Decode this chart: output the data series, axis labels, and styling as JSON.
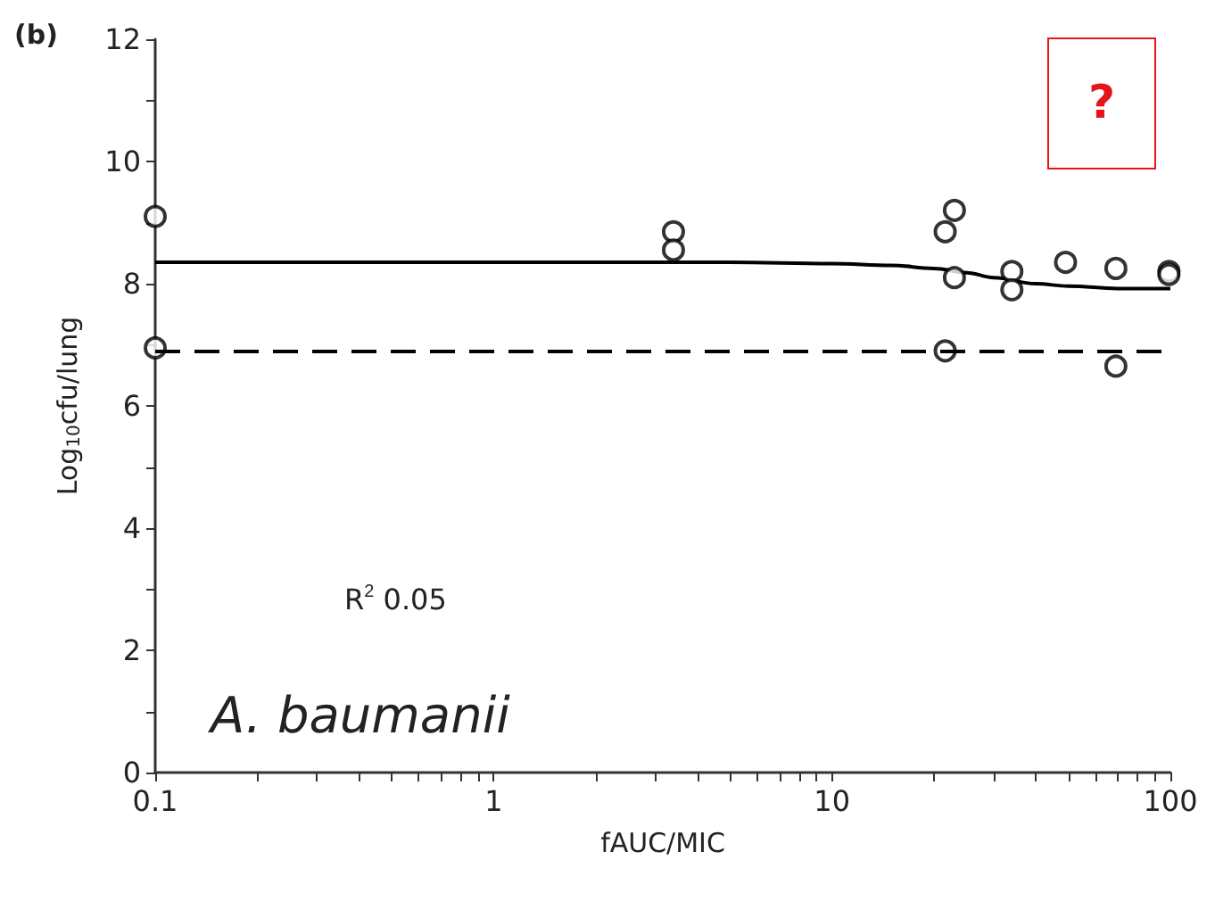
{
  "chart_data": {
    "type": "scatter",
    "xlabel": "fAUC/MIC",
    "ylabel": "Log$_{10}$cfu/lung",
    "annotations": [
      "(b)",
      "R$^{2}$ 0.05",
      "A. baumanii",
      "?"
    ],
    "log": "x",
    "grid": false,
    "xlim": [
      0.1,
      100
    ],
    "ylim": [
      0,
      12
    ],
    "xticks": [
      0.1,
      {
        "value": 0.2,
        "label": null
      },
      {
        "value": 0.3,
        "label": null
      },
      {
        "value": 0.4,
        "label": null
      },
      {
        "value": 0.5,
        "label": null
      },
      {
        "value": 0.6,
        "label": null
      },
      {
        "value": 0.7,
        "label": null
      },
      {
        "value": 0.8,
        "label": null
      },
      {
        "value": 0.9,
        "label": null
      },
      1,
      {
        "value": 2,
        "label": null
      },
      {
        "value": 3,
        "label": null
      },
      {
        "value": 4,
        "label": null
      },
      {
        "value": 5,
        "label": null
      },
      {
        "value": 6,
        "label": null
      },
      {
        "value": 7,
        "label": null
      },
      {
        "value": 8,
        "label": null
      },
      {
        "value": 9,
        "label": null
      },
      10,
      {
        "value": 20,
        "label": null
      },
      {
        "value": 30,
        "label": null
      },
      {
        "value": 40,
        "label": null
      },
      {
        "value": 50,
        "label": null
      },
      {
        "value": 60,
        "label": null
      },
      {
        "value": 70,
        "label": null
      },
      {
        "value": 80,
        "label": null
      },
      {
        "value": 90,
        "label": null
      },
      100
    ],
    "yticks": [
      0,
      {
        "value": 1,
        "label": null
      },
      2,
      {
        "value": 3,
        "label": null
      },
      4,
      {
        "value": 5,
        "label": null
      },
      6,
      {
        "value": 7,
        "label": null
      },
      8,
      {
        "value": 9,
        "label": null
      },
      10,
      {
        "value": 11,
        "label": null
      },
      12
    ],
    "series": [
      {
        "marker": "circle",
        "color": "#000000",
        "x": [
          0.1,
          0.1,
          3.4,
          3.4,
          21.6,
          23,
          23,
          21.6,
          34,
          34,
          49,
          69,
          69,
          99,
          99
        ],
        "values": [
          9.1,
          6.95,
          8.85,
          8.55,
          8.85,
          9.2,
          8.1,
          6.9,
          8.2,
          7.9,
          8.35,
          8.25,
          6.65,
          8.2,
          8.15
        ]
      },
      {
        "type": "line",
        "marker": "none",
        "line_style": "solid",
        "color": "#000000",
        "x": [
          0.1,
          1,
          5,
          10,
          15,
          20,
          25,
          30,
          40,
          50,
          70,
          100
        ],
        "values": [
          8.35,
          8.35,
          8.35,
          8.33,
          8.3,
          8.25,
          8.18,
          8.1,
          8.0,
          7.96,
          7.92,
          7.92
        ]
      }
    ],
    "ref_lines": [
      {
        "axis": "y",
        "value": 6.9,
        "label": null,
        "color": "#000000",
        "line_style": "dashed"
      }
    ]
  }
}
